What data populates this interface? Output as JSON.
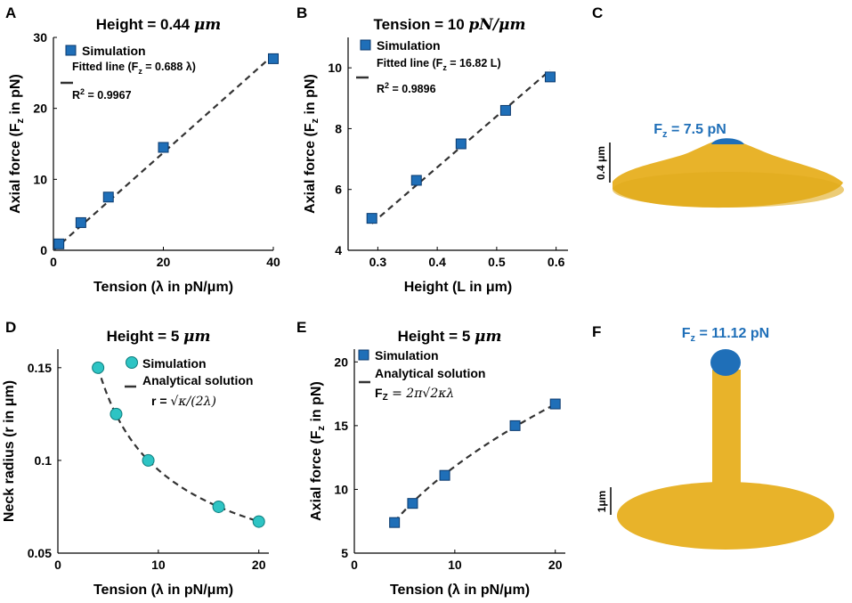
{
  "colors": {
    "square_marker": "#1f6fb8",
    "square_edge": "#0b3a6e",
    "circle_marker": "#2ec4c4",
    "circle_edge": "#0d7d7d",
    "fit_line": "#333333",
    "membrane": "#e8b32a",
    "tip": "#1f6fb8"
  },
  "panels": {
    "A": {
      "letter": "A",
      "title_prefix": "Height = 0.44 ",
      "title_unit": "μm"
    },
    "B": {
      "letter": "B",
      "title_prefix": "Tension = 10 ",
      "title_unit": "pN/μm"
    },
    "C": {
      "letter": "C",
      "force_label": "F",
      "force_sub": "z",
      "force_value": " = 7.5 pN",
      "scale_label": "0.4 μm"
    },
    "D": {
      "letter": "D",
      "title_prefix": "Height = 5 ",
      "title_unit": "μm"
    },
    "E": {
      "letter": "E",
      "title_prefix": "Height = 5 ",
      "title_unit": "μm"
    },
    "F": {
      "letter": "F",
      "force_label": "F",
      "force_sub": "z",
      "force_value": " = 11.12 pN",
      "scale_label": "1μm"
    }
  },
  "chart_data": [
    {
      "id": "A",
      "type": "scatter",
      "xlabel": "Tension (λ in pN/μm)",
      "ylabel": "Axial force (F",
      "ylabel_sub": "z",
      "ylabel_tail": " in pN)",
      "xlim": [
        0,
        40
      ],
      "ylim": [
        0,
        30
      ],
      "xticks": [
        0,
        20,
        40
      ],
      "yticks": [
        0,
        10,
        20,
        30
      ],
      "series": [
        {
          "name": "Simulation",
          "marker": "square",
          "x": [
            1,
            5,
            10,
            20,
            40
          ],
          "y": [
            0.9,
            3.9,
            7.5,
            14.5,
            27.0
          ]
        },
        {
          "name": "Fitted line",
          "style": "dashed",
          "x": [
            0,
            40
          ],
          "y": [
            0,
            27.52
          ]
        }
      ],
      "legend": {
        "simulation": "Simulation",
        "fit_prefix": "Fitted line (F",
        "fit_sub": "z",
        "fit_tail": " = 0.688 λ)",
        "r2_label": "R",
        "r2_sup": "2",
        "r2_value": " = 0.9967"
      }
    },
    {
      "id": "B",
      "type": "scatter",
      "xlabel": "Height (L in μm)",
      "ylabel": "Axial force (F",
      "ylabel_sub": "z",
      "ylabel_tail": " in pN)",
      "xlim": [
        0.25,
        0.62
      ],
      "ylim": [
        4,
        11
      ],
      "xticks": [
        0.3,
        0.4,
        0.5,
        0.6
      ],
      "yticks": [
        4,
        6,
        8,
        10
      ],
      "series": [
        {
          "name": "Simulation",
          "marker": "square",
          "x": [
            0.29,
            0.365,
            0.44,
            0.515,
            0.59
          ],
          "y": [
            5.05,
            6.3,
            7.5,
            8.6,
            9.7
          ]
        },
        {
          "name": "Fitted line",
          "style": "dashed",
          "x": [
            0.29,
            0.59
          ],
          "y": [
            4.88,
            9.92
          ]
        }
      ],
      "legend": {
        "simulation": "Simulation",
        "fit_prefix": "Fitted line (F",
        "fit_sub": "z",
        "fit_tail": " = 16.82 L)",
        "r2_label": "R",
        "r2_sup": "2",
        "r2_value": " = 0.9896"
      }
    },
    {
      "id": "D",
      "type": "scatter",
      "xlabel": "Tension (λ in pN/μm)",
      "ylabel": "Neck radius (r in μm)",
      "xlim": [
        0,
        21
      ],
      "ylim": [
        0.05,
        0.16
      ],
      "xticks": [
        0,
        10,
        20
      ],
      "yticks": [
        0.05,
        0.1,
        0.15
      ],
      "ytick_labels": [
        "0.05",
        "0.1",
        "0.15"
      ],
      "series": [
        {
          "name": "Simulation",
          "marker": "circle",
          "x": [
            4,
            5.8,
            9,
            16,
            20
          ],
          "y": [
            0.15,
            0.125,
            0.1,
            0.075,
            0.067
          ]
        },
        {
          "name": "Analytical solution",
          "style": "dashed",
          "curve": "r = 0.3/sqrt(x)",
          "x_start": 4,
          "x_end": 20
        }
      ],
      "legend": {
        "simulation": "Simulation",
        "analytical": "Analytical solution",
        "formula_lhs": "r = ",
        "formula_rhs": "√κ/(2λ)"
      }
    },
    {
      "id": "E",
      "type": "scatter",
      "xlabel": "Tension (λ in pN/μm)",
      "ylabel": "Axial force (F",
      "ylabel_sub": "z",
      "ylabel_tail": " in pN)",
      "xlim": [
        0,
        21
      ],
      "ylim": [
        5,
        21
      ],
      "xticks": [
        0,
        10,
        20
      ],
      "yticks": [
        5,
        10,
        15,
        20
      ],
      "series": [
        {
          "name": "Simulation",
          "marker": "square",
          "x": [
            4,
            5.8,
            9,
            16,
            20
          ],
          "y": [
            7.4,
            8.9,
            11.1,
            15.0,
            16.7
          ]
        },
        {
          "name": "Analytical solution",
          "style": "dashed",
          "curve": "F = 3.73*sqrt(x)",
          "x_start": 4,
          "x_end": 20
        }
      ],
      "legend": {
        "simulation": "Simulation",
        "analytical": "Analytical solution",
        "formula_lhs": "F",
        "formula_sub": "Z",
        "formula_rhs": " = 2π√2κλ"
      }
    }
  ]
}
